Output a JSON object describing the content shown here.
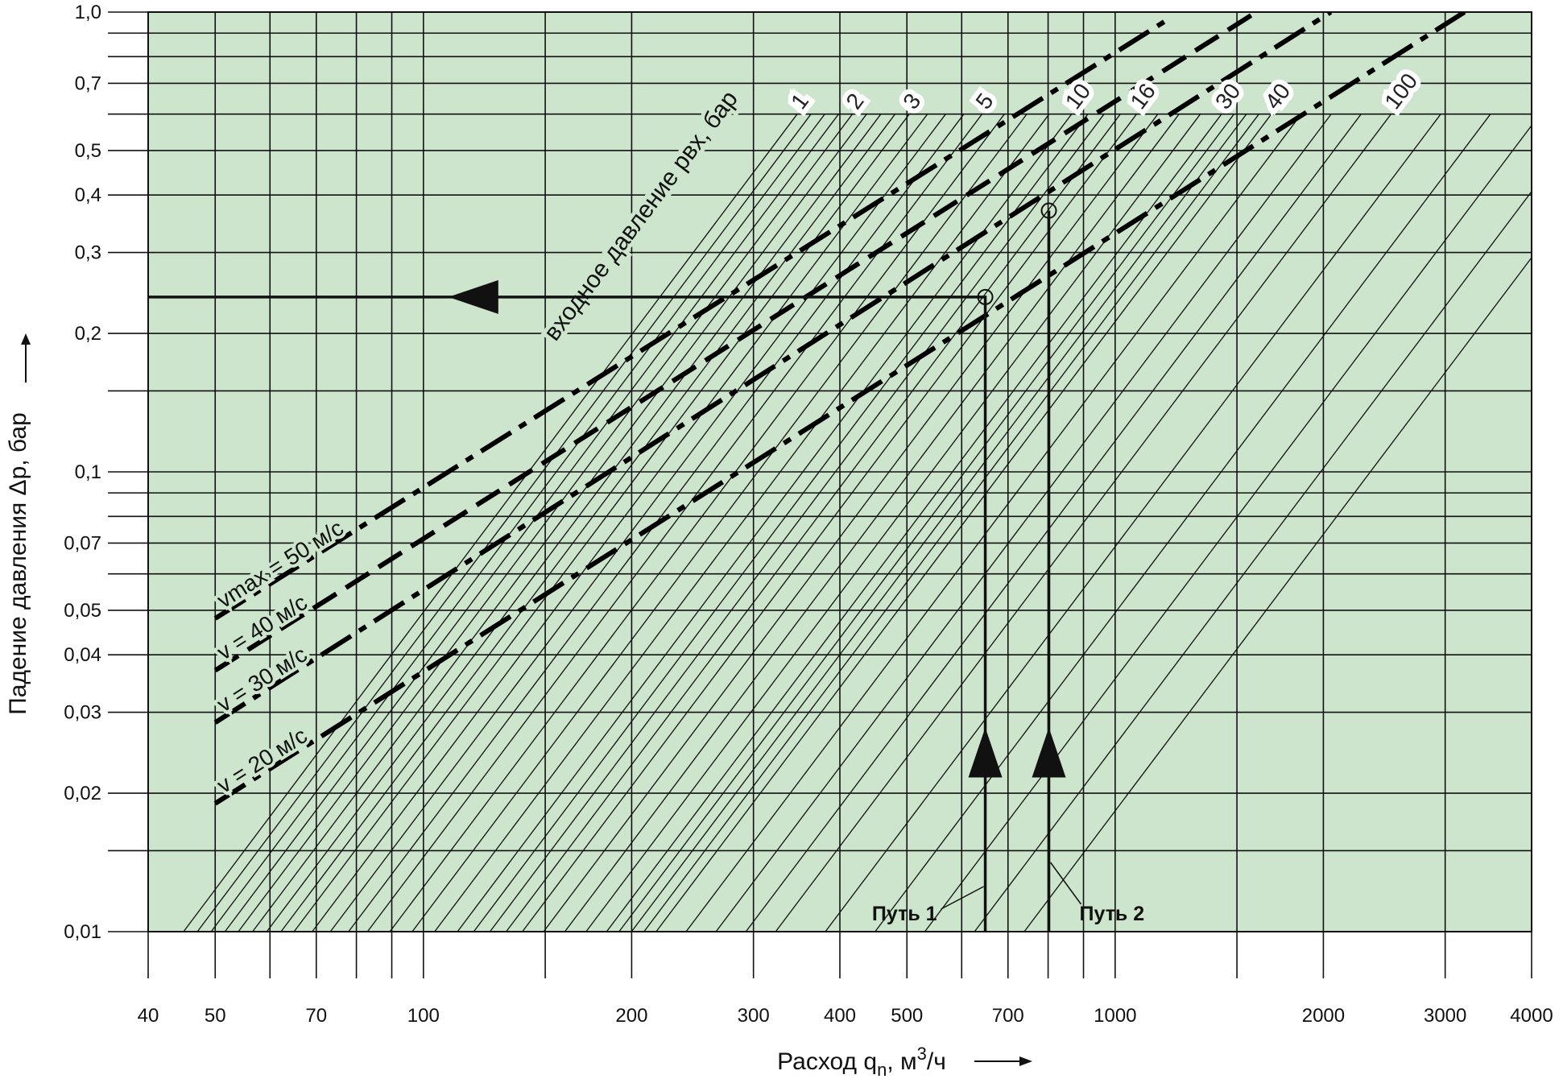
{
  "chart_data": {
    "type": "line",
    "log_x": true,
    "log_y": true,
    "grid": true,
    "background": "#cde5cc",
    "y_label": "Падение давления Δp, бар",
    "x_label_parts": [
      "Расход q",
      "n",
      ", м",
      "3",
      "/ч"
    ],
    "xlim": [
      40,
      4000
    ],
    "ylim": [
      0.01,
      1.0
    ],
    "xticks": [
      40,
      50,
      70,
      100,
      200,
      300,
      400,
      500,
      700,
      1000,
      2000,
      3000,
      4000
    ],
    "xminor": [
      60,
      80,
      90,
      150,
      600,
      800,
      900,
      1500
    ],
    "yticks": [
      {
        "value": 0.01,
        "label": "0,01"
      },
      {
        "value": 0.02,
        "label": "0,02"
      },
      {
        "value": 0.03,
        "label": "0,03"
      },
      {
        "value": 0.04,
        "label": "0,04"
      },
      {
        "value": 0.05,
        "label": "0,05"
      },
      {
        "value": 0.07,
        "label": "0,07"
      },
      {
        "value": 0.1,
        "label": "0,1"
      },
      {
        "value": 0.2,
        "label": "0,2"
      },
      {
        "value": 0.3,
        "label": "0,3"
      },
      {
        "value": 0.4,
        "label": "0,4"
      },
      {
        "value": 0.5,
        "label": "0,5"
      },
      {
        "value": 0.7,
        "label": "0,7"
      },
      {
        "value": 1.0,
        "label": "1,0"
      }
    ],
    "yminor": [
      0.015,
      0.06,
      0.08,
      0.09,
      0.15,
      0.6,
      0.8,
      0.9
    ],
    "series": [
      {
        "name": "vmax = 50 м/с",
        "color": "#000000",
        "dash": "dash-dot",
        "x": [
          50,
          1200
        ],
        "y": [
          0.048,
          0.97
        ]
      },
      {
        "name": "v = 40 м/с",
        "color": "#000000",
        "dash": "dash",
        "x": [
          50,
          1600
        ],
        "y": [
          0.037,
          1.0
        ]
      },
      {
        "name": "v = 30 м/с",
        "color": "#000000",
        "dash": "dash-dot",
        "x": [
          50,
          2050
        ],
        "y": [
          0.0285,
          1.0
        ]
      },
      {
        "name": "v = 20 м/с",
        "color": "#000000",
        "dash": "dash-dot",
        "x": [
          50,
          3200
        ],
        "y": [
          0.019,
          1.0
        ]
      }
    ],
    "pressure_label": "входное давление рвх, бар",
    "pressure_lines": [
      {
        "name": "1",
        "x": [
          45,
          347
        ],
        "y": [
          0.01,
          0.6
        ]
      },
      {
        "name": "2",
        "x": [
          54,
          417
        ],
        "y": [
          0.01,
          0.6
        ]
      },
      {
        "name": "3",
        "x": [
          65,
          504
        ],
        "y": [
          0.01,
          0.6
        ]
      },
      {
        "name": "5",
        "x": [
          83,
          642
        ],
        "y": [
          0.01,
          0.6
        ]
      },
      {
        "name": "10",
        "x": [
          112,
          865
        ],
        "y": [
          0.01,
          0.6
        ]
      },
      {
        "name": "16",
        "x": [
          139,
          1074
        ],
        "y": [
          0.01,
          0.6
        ]
      },
      {
        "name": "30",
        "x": [
          184,
          1425
        ],
        "y": [
          0.01,
          0.6
        ]
      },
      {
        "name": "40",
        "x": [
          217,
          1682
        ],
        "y": [
          0.01,
          0.6
        ]
      },
      {
        "name": "100",
        "x": [
          323,
          2505
        ],
        "y": [
          0.01,
          0.6
        ]
      }
    ],
    "paths": [
      {
        "name": "Путь 1",
        "x": [
          649,
          649,
          40
        ],
        "y": [
          0.01,
          0.24,
          0.24
        ]
      },
      {
        "name": "Путь 2",
        "x": [
          802,
          802
        ],
        "y": [
          0.01,
          0.37
        ]
      }
    ]
  }
}
